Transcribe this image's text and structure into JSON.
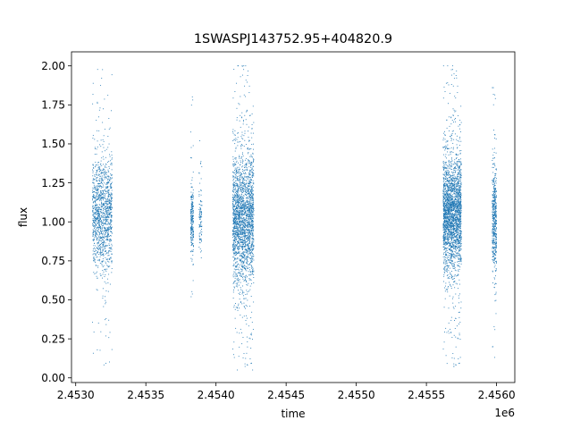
{
  "chart_data": {
    "type": "scatter",
    "title": "1SWASPJ143752.95+404820.9",
    "xlabel": "time",
    "ylabel": "flux",
    "x_offset_label": "1e6",
    "xlim": [
      2.45297,
      2.45613
    ],
    "ylim": [
      -0.03,
      2.09
    ],
    "x_ticks": [
      2.453,
      2.4535,
      2.454,
      2.4545,
      2.455,
      2.4555,
      2.456
    ],
    "x_tick_labels": [
      "2.4530",
      "2.4535",
      "2.4540",
      "2.4545",
      "2.4550",
      "2.4555",
      "2.4560"
    ],
    "y_ticks": [
      0.0,
      0.25,
      0.5,
      0.75,
      1.0,
      1.25,
      1.5,
      1.75,
      2.0
    ],
    "y_tick_labels": [
      "0.00",
      "0.25",
      "0.50",
      "0.75",
      "1.00",
      "1.25",
      "1.50",
      "1.75",
      "2.00"
    ],
    "grid": false,
    "marker_color": "#1f77b4",
    "observing_seasons": [
      {
        "x_start": 2.45312,
        "x_end": 2.45326,
        "flux_center": 1.05,
        "flux_spread": 0.17,
        "flux_min": 0.06,
        "flux_max": 1.98,
        "points": 1300
      },
      {
        "x_start": 2.45382,
        "x_end": 2.45384,
        "flux_center": 1.0,
        "flux_spread": 0.09,
        "flux_min": 0.37,
        "flux_max": 1.84,
        "points": 240
      },
      {
        "x_start": 2.45388,
        "x_end": 2.4539,
        "flux_center": 1.0,
        "flux_spread": 0.1,
        "flux_min": 0.75,
        "flux_max": 1.52,
        "points": 100
      },
      {
        "x_start": 2.45412,
        "x_end": 2.45427,
        "flux_center": 1.02,
        "flux_spread": 0.2,
        "flux_min": 0.05,
        "flux_max": 2.0,
        "points": 2300
      },
      {
        "x_start": 2.45562,
        "x_end": 2.45575,
        "flux_center": 1.05,
        "flux_spread": 0.17,
        "flux_min": 0.05,
        "flux_max": 2.0,
        "points": 2500
      },
      {
        "x_start": 2.45597,
        "x_end": 2.456,
        "flux_center": 1.0,
        "flux_spread": 0.15,
        "flux_min": 0.11,
        "flux_max": 1.86,
        "points": 500
      }
    ]
  }
}
